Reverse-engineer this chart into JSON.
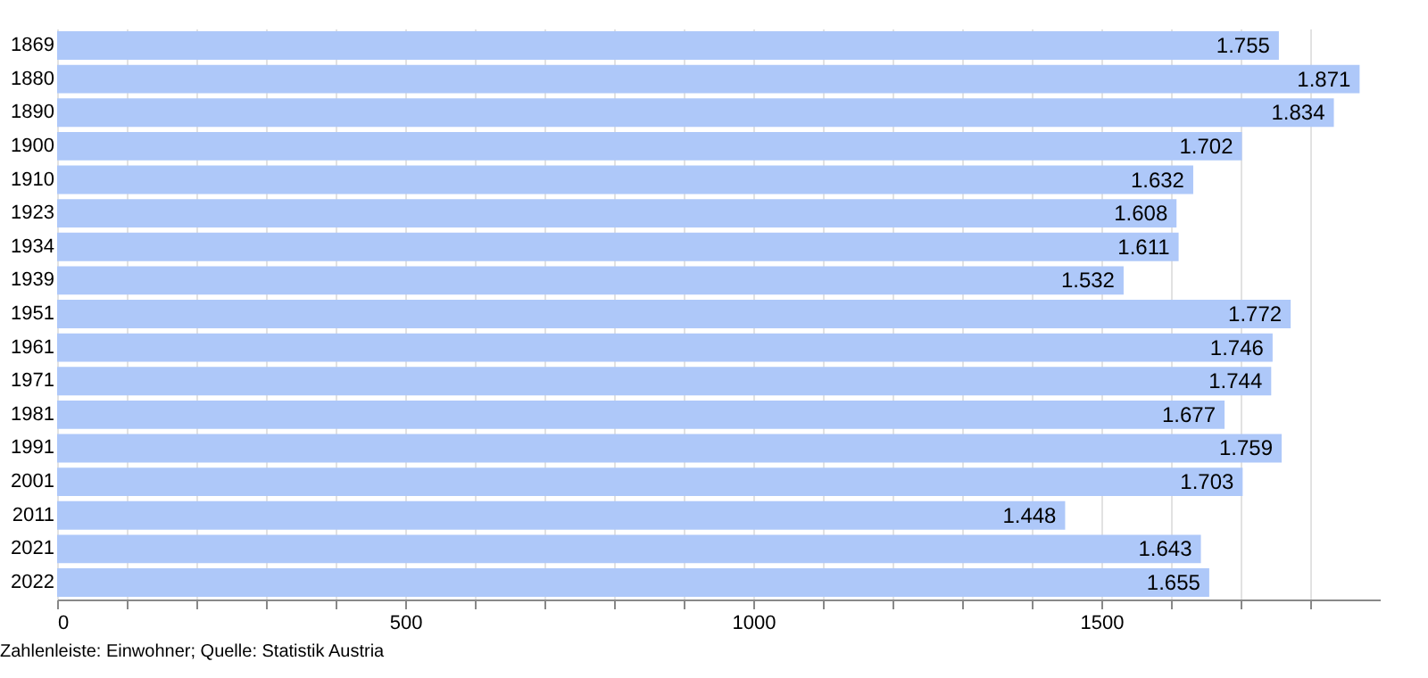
{
  "chart_data": {
    "type": "bar",
    "orientation": "horizontal",
    "categories": [
      "1869",
      "1880",
      "1890",
      "1900",
      "1910",
      "1923",
      "1934",
      "1939",
      "1951",
      "1961",
      "1971",
      "1981",
      "1991",
      "2001",
      "2011",
      "2021",
      "2022"
    ],
    "values": [
      1755,
      1871,
      1834,
      1702,
      1632,
      1608,
      1611,
      1532,
      1772,
      1746,
      1744,
      1677,
      1759,
      1703,
      1448,
      1643,
      1655
    ],
    "value_labels": [
      "1.755",
      "1.871",
      "1.834",
      "1.702",
      "1.632",
      "1.608",
      "1.611",
      "1.532",
      "1.772",
      "1.746",
      "1.744",
      "1.677",
      "1.759",
      "1.703",
      "1.448",
      "1.643",
      "1.655"
    ],
    "color": "#aec8f9",
    "xlim": [
      0,
      1900
    ],
    "xticks": [
      0,
      {
        "value": 100,
        "label": null
      },
      {
        "value": 200,
        "label": null
      },
      {
        "value": 300,
        "label": null
      },
      {
        "value": 400,
        "label": null
      },
      500,
      {
        "value": 600,
        "label": null
      },
      {
        "value": 700,
        "label": null
      },
      {
        "value": 800,
        "label": null
      },
      {
        "value": 900,
        "label": null
      },
      1000,
      {
        "value": 1100,
        "label": null
      },
      {
        "value": 1200,
        "label": null
      },
      {
        "value": 1300,
        "label": null
      },
      {
        "value": 1400,
        "label": null
      },
      1500,
      {
        "value": 1600,
        "label": null
      },
      {
        "value": 1700,
        "label": null
      },
      {
        "value": 1800,
        "label": null
      }
    ],
    "grid": "x",
    "annotations": [
      "Zahlenleiste: Einwohner; Quelle: Statistik Austria"
    ]
  }
}
